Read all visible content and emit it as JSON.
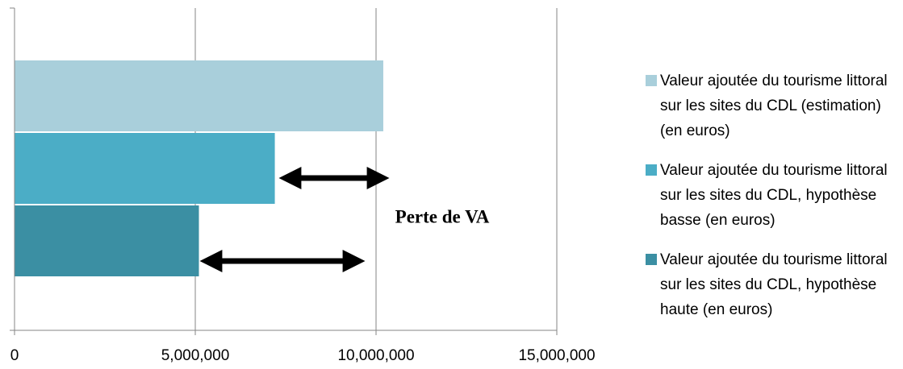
{
  "chart_data": {
    "type": "barh",
    "categories": [
      null
    ],
    "series": [
      {
        "name": "Valeur ajoutée du tourisme littoral sur les sites du CDL (estimation) (en euros)",
        "color": "#a9cfdb",
        "values": [
          10200000
        ]
      },
      {
        "name": "Valeur ajoutée du tourisme littoral sur les sites du CDL, hypothèse basse (en euros)",
        "color": "#4badc6",
        "values": [
          7200000
        ]
      },
      {
        "name": "Valeur ajoutée du tourisme littoral sur les sites du CDL, hypothèse haute (en euros)",
        "color": "#3b8fa3",
        "values": [
          5100000
        ]
      }
    ],
    "xlim": [
      0,
      15000000
    ],
    "xticks": [
      0,
      {
        "value": 5000000,
        "label": "5,000,000"
      },
      {
        "value": 10000000,
        "label": "10,000,000"
      },
      {
        "value": 15000000,
        "label": "15,000,000"
      }
    ],
    "grid": true,
    "legend": "right",
    "annotation": "Perte de VA"
  }
}
